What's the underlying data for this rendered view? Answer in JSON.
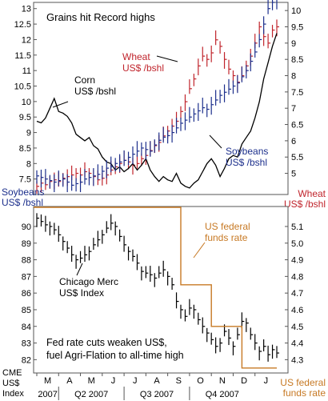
{
  "chart_data": [
    {
      "type": "line",
      "title": "Grains hit Record highs",
      "left_axis": {
        "unit": "Soybeans US$ /bshl",
        "ticks": [
          7.5,
          8,
          8.5,
          9,
          9.5,
          10,
          10.5,
          11,
          11.5,
          12,
          12.5,
          13
        ],
        "tick_labels": [
          "7.5",
          "8",
          "8.5",
          "9",
          "9.5",
          "10",
          "10.5",
          "11",
          "11.5",
          "12",
          "12.5",
          "13"
        ],
        "range": [
          7.0,
          13.2
        ]
      },
      "right_axis": {
        "unit": "Wheat US$ /bshl",
        "ticks": [
          5,
          5.5,
          6,
          6.5,
          7,
          7.5,
          8,
          8.5,
          9,
          9.5,
          10
        ],
        "tick_labels": [
          "5",
          "5.5",
          "6",
          "6.5",
          "7",
          "7.5",
          "8",
          "8.5",
          "9",
          "9.5",
          "10"
        ],
        "range": [
          4.35,
          10.25
        ]
      },
      "annotations": {
        "wheat": "Wheat US$ /bshl",
        "corn": "Corn US$ /bshl",
        "soybeans": "Soybeans US$ /bshl"
      },
      "x": [
        0,
        1,
        2,
        3,
        4,
        5,
        6,
        7,
        8,
        9,
        10,
        11,
        12,
        13,
        14,
        15,
        16,
        17,
        18,
        19,
        20,
        21,
        22,
        23,
        24,
        25,
        26,
        27,
        28,
        29,
        30,
        31,
        32,
        33,
        34,
        35,
        36,
        37,
        38,
        39,
        40,
        41,
        42,
        43,
        44,
        45,
        46,
        47,
        48,
        49,
        50,
        51,
        52,
        53,
        54,
        55
      ],
      "series": [
        {
          "name": "Wheat",
          "axis": "right",
          "color": "#c0242c",
          "values": [
            4.6,
            4.7,
            4.65,
            4.75,
            4.8,
            4.75,
            4.85,
            4.9,
            4.95,
            5.0,
            4.95,
            5.05,
            5.0,
            4.9,
            4.8,
            4.85,
            4.95,
            5.1,
            5.2,
            5.3,
            5.4,
            5.35,
            5.25,
            5.3,
            5.45,
            5.55,
            5.7,
            5.85,
            5.95,
            6.15,
            6.3,
            6.45,
            6.6,
            6.9,
            7.2,
            7.6,
            7.9,
            8.3,
            8.6,
            8.5,
            8.7,
            9.1,
            8.9,
            8.5,
            8.2,
            8.0,
            7.8,
            8.0,
            8.3,
            8.6,
            9.0,
            9.5,
            9.2,
            9.0,
            9.4,
            9.5
          ]
        },
        {
          "name": "Corn",
          "axis": "right",
          "color": "#000000",
          "values": [
            6.6,
            6.55,
            6.7,
            7.0,
            7.3,
            6.9,
            6.85,
            6.75,
            6.55,
            6.2,
            6.1,
            6.0,
            6.1,
            5.85,
            5.75,
            5.5,
            5.35,
            5.3,
            5.1,
            5.2,
            5.05,
            5.15,
            5.3,
            5.1,
            5.25,
            5.45,
            5.1,
            4.9,
            4.75,
            4.9,
            4.8,
            4.75,
            5.0,
            4.7,
            4.6,
            4.55,
            4.7,
            4.8,
            5.05,
            5.3,
            5.45,
            5.25,
            4.9,
            5.15,
            5.45,
            5.55,
            5.5,
            5.9,
            6.1,
            6.3,
            6.7,
            7.2,
            7.9,
            8.4,
            8.9,
            9.3
          ]
        },
        {
          "name": "Soybeans",
          "axis": "left",
          "color": "#1c2f8c",
          "values": [
            7.6,
            7.55,
            7.5,
            7.45,
            7.4,
            7.45,
            7.5,
            7.4,
            7.3,
            7.35,
            7.4,
            7.5,
            7.55,
            7.6,
            7.65,
            7.75,
            7.85,
            7.9,
            8.0,
            8.05,
            8.1,
            8.2,
            8.3,
            8.4,
            8.5,
            8.45,
            8.4,
            8.6,
            8.75,
            8.85,
            8.9,
            9.0,
            9.15,
            9.3,
            9.4,
            9.5,
            9.6,
            9.7,
            9.8,
            9.75,
            9.9,
            10.05,
            10.2,
            10.3,
            10.4,
            10.5,
            10.6,
            10.8,
            11.0,
            11.3,
            11.6,
            12.0,
            12.5,
            13.0,
            13.2,
            13.3
          ]
        }
      ]
    },
    {
      "type": "line",
      "left_axis": {
        "unit": "CME US$ Index",
        "ticks": [
          82,
          83,
          84,
          85,
          86,
          87,
          88,
          89,
          90
        ],
        "tick_labels": [
          "82",
          "83",
          "84",
          "85",
          "86",
          "87",
          "88",
          "89",
          "90"
        ],
        "range": [
          81.2,
          91.2
        ]
      },
      "right_axis": {
        "unit": "US federal funds rate",
        "ticks": [
          4.3,
          4.4,
          4.5,
          4.6,
          4.7,
          4.8,
          4.9,
          5.0,
          5.1
        ],
        "tick_labels": [
          "4.3",
          "4.4",
          "4.5",
          "4.6",
          "4.7",
          "4.8",
          "4.9",
          "5.0",
          "5.1"
        ],
        "range": [
          4.22,
          5.22
        ]
      },
      "annotations": {
        "fed": "US federal funds rate",
        "cme": "Chicago Merc US$ Index",
        "note_line1": "Fed rate cuts weaken US$,",
        "note_line2": "fuel Agri-Flation to all-time high"
      },
      "x_axis_labels": [
        "M",
        "A",
        "M",
        "J",
        "J",
        "A",
        "S",
        "O",
        "N",
        "D",
        "J"
      ],
      "quarter_labels": [
        "2007",
        "Q2 2007",
        "Q3 2007",
        "Q4 2007"
      ],
      "x": [
        0,
        1,
        2,
        3,
        4,
        5,
        6,
        7,
        8,
        9,
        10,
        11,
        12,
        13,
        14,
        15,
        16,
        17,
        18,
        19,
        20,
        21,
        22,
        23,
        24,
        25,
        26,
        27,
        28,
        29,
        30,
        31,
        32,
        33,
        34,
        35,
        36,
        37,
        38,
        39,
        40,
        41,
        42,
        43,
        44,
        45,
        46,
        47,
        48,
        49,
        50,
        51,
        52,
        53,
        54,
        55
      ],
      "series": [
        {
          "name": "Chicago Merc US$ Index",
          "axis": "left",
          "color": "#000000",
          "values": [
            90.5,
            90.3,
            90.1,
            90.0,
            89.8,
            89.5,
            89.1,
            88.7,
            88.3,
            88.0,
            88.1,
            88.3,
            88.5,
            88.9,
            89.2,
            89.5,
            89.9,
            90.2,
            90.0,
            89.4,
            88.9,
            88.5,
            88.2,
            87.8,
            87.3,
            87.2,
            87.1,
            86.9,
            87.2,
            87.4,
            87.0,
            86.5,
            85.5,
            85.0,
            84.6,
            85.1,
            85.0,
            84.4,
            84.0,
            83.6,
            83.2,
            82.8,
            83.0,
            83.7,
            83.3,
            82.8,
            83.5,
            84.3,
            84.2,
            83.5,
            83.0,
            82.5,
            82.8,
            82.3,
            82.6,
            82.4
          ]
        },
        {
          "name": "US federal funds rate",
          "axis": "right",
          "color": "#c77924",
          "values": [
            5.25,
            5.25,
            5.25,
            5.25,
            5.25,
            5.25,
            5.25,
            5.25,
            5.25,
            5.25,
            5.25,
            5.25,
            5.25,
            5.25,
            5.25,
            5.25,
            5.25,
            5.25,
            5.25,
            5.25,
            5.25,
            5.25,
            5.25,
            5.25,
            5.25,
            5.25,
            5.25,
            5.25,
            5.25,
            5.25,
            5.25,
            5.25,
            5.25,
            4.75,
            4.75,
            4.75,
            4.75,
            4.75,
            4.75,
            4.75,
            4.5,
            4.5,
            4.5,
            4.5,
            4.5,
            4.5,
            4.5,
            4.25,
            4.25,
            4.25,
            4.25,
            4.25,
            4.25,
            4.25,
            4.25,
            4.25
          ]
        }
      ]
    }
  ]
}
